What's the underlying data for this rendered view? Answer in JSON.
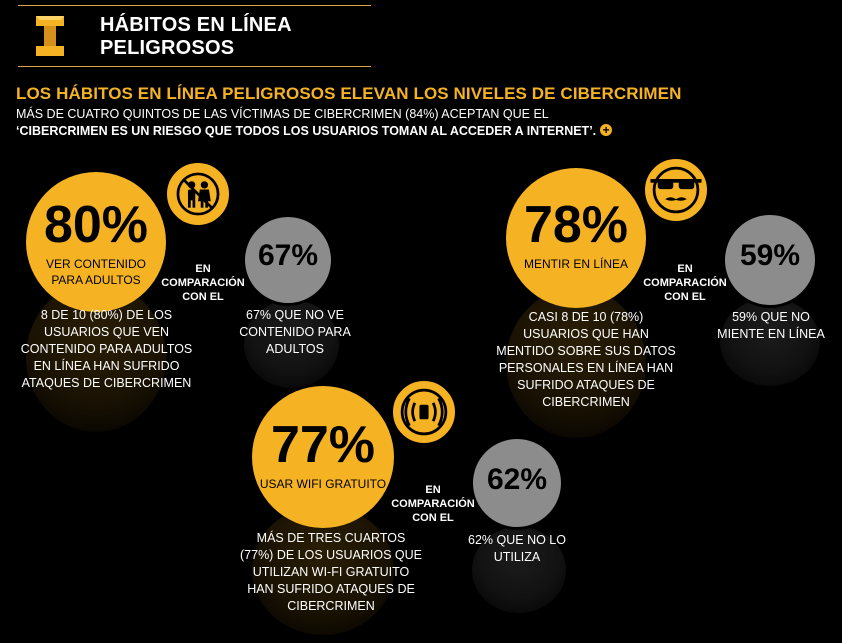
{
  "header": {
    "title_line1": "HÁBITOS EN LÍNEA",
    "title_line2": "PELIGROSOS",
    "logo_icon": "i-beam-icon"
  },
  "intro": {
    "headline": "LOS HÁBITOS EN LÍNEA PELIGROSOS ELEVAN LOS NIVELES DE CIBERCRIMEN",
    "sub_line1": "MÁS DE CUATRO QUINTOS DE LAS VÍCTIMAS DE CIBERCRIMEN (84%) ACEPTAN QUE EL",
    "sub_line2": "‘CIBERCRIMEN ES UN RIESGO QUE TODOS LOS USUARIOS TOMAN AL ACCEDER A INTERNET’.",
    "more_icon": "+"
  },
  "comparison_label": [
    "EN",
    "COMPARACIÓN",
    "CON EL"
  ],
  "stats": {
    "adult": {
      "value": "80%",
      "label": [
        "VER CONTENIDO",
        "PARA ADULTOS"
      ],
      "description": [
        "8 DE 10 (80%) DE LOS",
        "USUARIOS QUE VEN",
        "CONTENIDO PARA ADULTOS",
        "EN LÍNEA HAN SUFRIDO",
        "ATAQUES DE CIBERCRIMEN"
      ],
      "compare_value": "67%",
      "compare_description": [
        "67% QUE NO VE",
        "CONTENIDO PARA",
        "ADULTOS"
      ],
      "icon": "no-adults-icon"
    },
    "lying": {
      "value": "78%",
      "label": [
        "MENTIR EN LÍNEA"
      ],
      "description": [
        "CASI 8 DE 10 (78%)",
        "USUARIOS QUE HAN",
        "MENTIDO SOBRE SUS DATOS",
        "PERSONALES EN LÍNEA HAN",
        "SUFRIDO ATAQUES DE",
        "CIBERCRIMEN"
      ],
      "compare_value": "59%",
      "compare_description": [
        "59% QUE NO",
        "MIENTE EN LÍNEA"
      ],
      "icon": "disguise-face-icon"
    },
    "wifi": {
      "value": "77%",
      "label": [
        "USAR WIFI GRATUITO"
      ],
      "description": [
        "MÁS DE TRES CUARTOS",
        "(77%) DE LOS USUARIOS QUE",
        "UTILIZAN WI-FI GRATUITO",
        "HAN SUFRIDO ATAQUES DE",
        "CIBERCRIMEN"
      ],
      "compare_value": "62%",
      "compare_description": [
        "62% QUE NO LO",
        "UTILIZA"
      ],
      "icon": "wifi-signal-icon"
    }
  },
  "colors": {
    "accent": "#f5b323",
    "gray": "#8c8c8c",
    "background": "#000000"
  }
}
